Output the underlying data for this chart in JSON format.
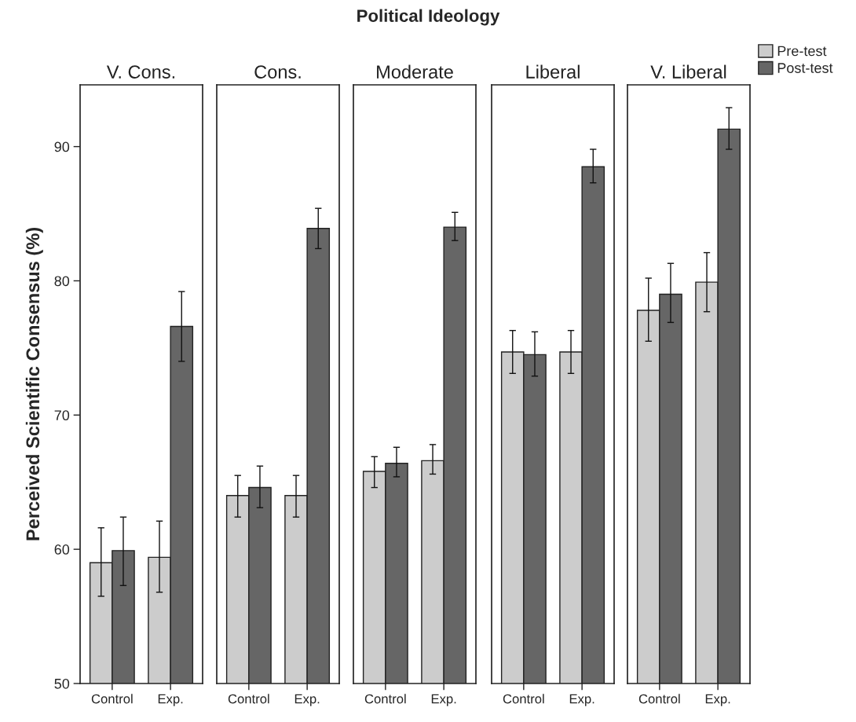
{
  "chart_data": [
    {
      "type": "bar",
      "title": "V. Cons.",
      "annotations": [
        "Political Ideology"
      ],
      "ylabel": "Perceived Scientific Consensus (%)",
      "categories": [
        "Control",
        "Exp."
      ],
      "ylim": [
        50,
        94.6
      ],
      "yticks": [
        50,
        60,
        70,
        80,
        90
      ],
      "series": [
        {
          "color": "#cccccc",
          "values": [
            59.0,
            59.4
          ],
          "errors": [
            [
              56.5,
              61.6
            ],
            [
              56.8,
              62.1
            ]
          ]
        },
        {
          "color": "#666666",
          "values": [
            59.9,
            76.6
          ],
          "errors": [
            [
              57.3,
              62.4
            ],
            [
              74.0,
              79.2
            ]
          ]
        }
      ]
    },
    {
      "type": "bar",
      "title": "Cons.",
      "categories": [
        "Control",
        "Exp."
      ],
      "ylim": [
        50,
        94.6
      ],
      "tick_labels": "x",
      "series": [
        {
          "color": "#cccccc",
          "values": [
            64.0,
            64.0
          ],
          "errors": [
            [
              62.4,
              65.5
            ],
            [
              62.4,
              65.5
            ]
          ]
        },
        {
          "color": "#666666",
          "values": [
            64.6,
            83.9
          ],
          "errors": [
            [
              63.1,
              66.2
            ],
            [
              82.4,
              85.4
            ]
          ]
        }
      ]
    },
    {
      "type": "bar",
      "title": "Moderate",
      "categories": [
        "Control",
        "Exp."
      ],
      "ylim": [
        50,
        94.6
      ],
      "tick_labels": "x",
      "series": [
        {
          "color": "#cccccc",
          "values": [
            65.8,
            66.6
          ],
          "errors": [
            [
              64.6,
              66.9
            ],
            [
              65.6,
              67.8
            ]
          ]
        },
        {
          "color": "#666666",
          "values": [
            66.4,
            84.0
          ],
          "errors": [
            [
              65.4,
              67.6
            ],
            [
              83.0,
              85.1
            ]
          ]
        }
      ]
    },
    {
      "type": "bar",
      "title": "Liberal",
      "categories": [
        "Control",
        "Exp."
      ],
      "ylim": [
        50,
        94.6
      ],
      "tick_labels": "x",
      "series": [
        {
          "color": "#cccccc",
          "values": [
            74.7,
            74.7
          ],
          "errors": [
            [
              73.1,
              76.3
            ],
            [
              73.1,
              76.3
            ]
          ]
        },
        {
          "color": "#666666",
          "values": [
            74.5,
            88.5
          ],
          "errors": [
            [
              72.9,
              76.2
            ],
            [
              87.3,
              89.8
            ]
          ]
        }
      ]
    },
    {
      "type": "bar",
      "title": "V. Liberal",
      "categories": [
        "Control",
        "Exp."
      ],
      "ylim": [
        50,
        94.6
      ],
      "tick_labels": "x",
      "legend": "top right",
      "series": [
        {
          "name": "Pre-test",
          "color": "#cccccc",
          "values": [
            77.8,
            79.9
          ],
          "errors": [
            [
              75.5,
              80.2
            ],
            [
              77.7,
              82.1
            ]
          ]
        },
        {
          "name": "Post-test",
          "color": "#666666",
          "values": [
            79.0,
            91.3
          ],
          "errors": [
            [
              76.9,
              81.3
            ],
            [
              89.8,
              92.9
            ]
          ]
        }
      ]
    }
  ]
}
